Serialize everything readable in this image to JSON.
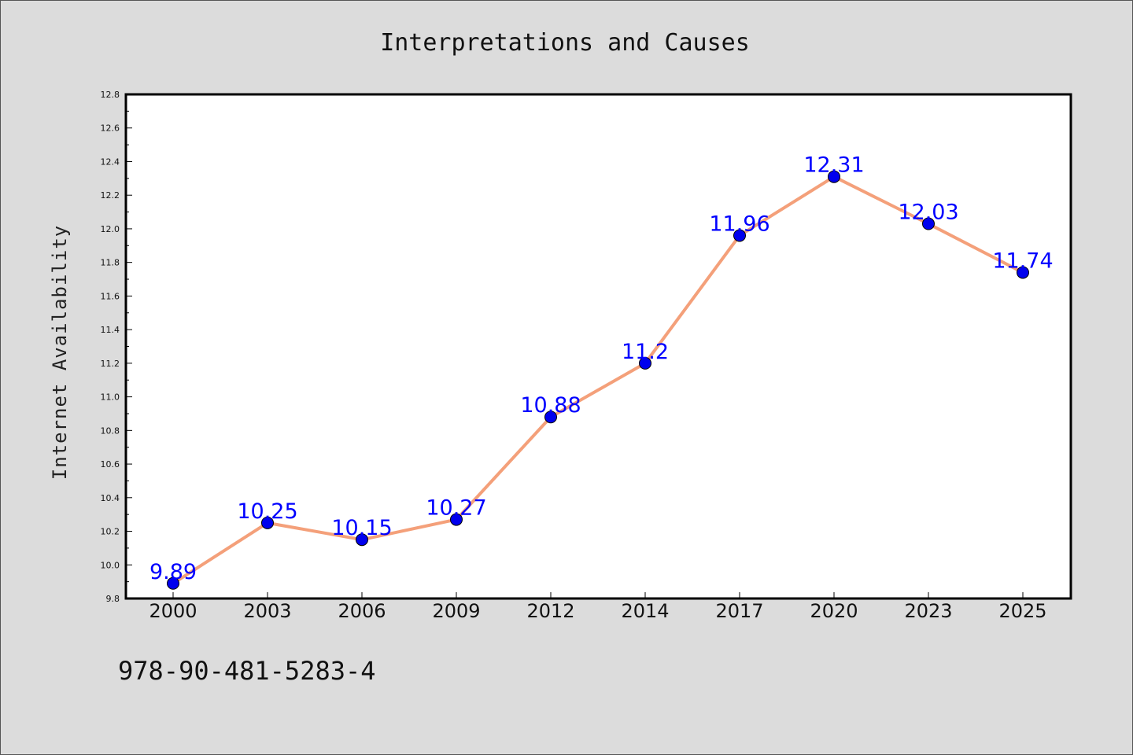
{
  "chart_data": {
    "type": "line",
    "title": "Interpretations and Causes",
    "ylabel": "Internet Availability",
    "xlabel": "",
    "categories": [
      "2000",
      "2003",
      "2006",
      "2009",
      "2012",
      "2014",
      "2017",
      "2020",
      "2023",
      "2025"
    ],
    "series": [
      {
        "values": [
          9.89,
          10.25,
          10.15,
          10.27,
          10.88,
          11.2,
          11.96,
          12.31,
          12.03,
          11.74
        ],
        "labels": [
          "9.89",
          "10.25",
          "10.15",
          "10.27",
          "10.88",
          "11.2",
          "11.96",
          "12.31",
          "12.03",
          "11.74"
        ]
      }
    ],
    "ylim": [
      9.8,
      12.8
    ],
    "yticks": [
      "9.8",
      "10.0",
      "10.2",
      "10.4",
      "10.6",
      "10.8",
      "11.0",
      "11.2",
      "11.4",
      "11.6",
      "11.8",
      "12.0",
      "12.2",
      "12.4",
      "12.6",
      "12.8"
    ],
    "grid": false,
    "colors": {
      "line": "#f4a07a",
      "marker": "#0000ee",
      "label": "#0000ff",
      "background": "#dcdcdc",
      "plot_background": "#ffffff"
    }
  },
  "footnote": "978-90-481-5283-4"
}
